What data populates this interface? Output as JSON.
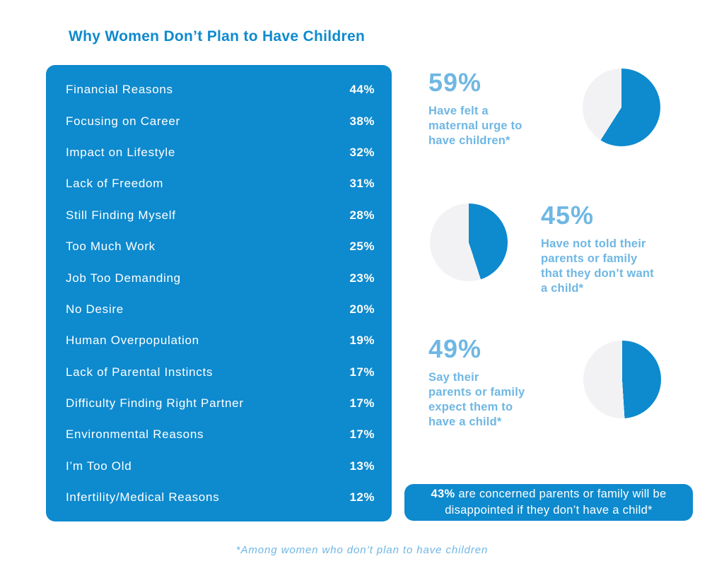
{
  "title": "Why Women Don’t Plan to Have Children",
  "colors": {
    "primary": "#0E8ACE",
    "light_blue": "#6FB7E4",
    "pie_rest": "#F2F2F4",
    "text_on_primary": "#FFFFFF"
  },
  "reasons": {
    "items": [
      {
        "label": "Financial Reasons",
        "pct": "44%"
      },
      {
        "label": "Focusing on Career",
        "pct": "38%"
      },
      {
        "label": "Impact on Lifestyle",
        "pct": "32%"
      },
      {
        "label": "Lack of Freedom",
        "pct": "31%"
      },
      {
        "label": "Still Finding Myself",
        "pct": "28%"
      },
      {
        "label": "Too Much Work",
        "pct": "25%"
      },
      {
        "label": "Job Too Demanding",
        "pct": "23%"
      },
      {
        "label": "No Desire",
        "pct": "20%"
      },
      {
        "label": "Human Overpopulation",
        "pct": "19%"
      },
      {
        "label": "Lack of Parental Instincts",
        "pct": "17%"
      },
      {
        "label": "Difficulty Finding Right Partner",
        "pct": "17%"
      },
      {
        "label": "Environmental Reasons",
        "pct": "17%"
      },
      {
        "label": "I’m Too Old",
        "pct": "13%"
      },
      {
        "label": "Infertility/Medical Reasons",
        "pct": "12%"
      }
    ]
  },
  "stats": [
    {
      "value": 59,
      "number": "59%",
      "lines": [
        "Have felt a",
        "maternal urge to",
        "have children*"
      ]
    },
    {
      "value": 45,
      "number": "45%",
      "lines": [
        "Have not told their",
        "parents or family",
        "that they don’t want",
        "a child*"
      ]
    },
    {
      "value": 49,
      "number": "49%",
      "lines": [
        "Say their",
        "parents or family",
        "expect them to",
        "have a child*"
      ]
    }
  ],
  "banner": {
    "highlight": "43%",
    "text": " are concerned parents or family will be disappointed if they don’t have a child*"
  },
  "footnote": "*Among women who don’t plan to have children",
  "chart_data": [
    {
      "type": "table",
      "title": "Why Women Don’t Plan to Have Children",
      "categories": [
        "Financial Reasons",
        "Focusing on Career",
        "Impact on Lifestyle",
        "Lack of Freedom",
        "Still Finding Myself",
        "Too Much Work",
        "Job Too Demanding",
        "No Desire",
        "Human Overpopulation",
        "Lack of Parental Instincts",
        "Difficulty Finding Right Partner",
        "Environmental Reasons",
        "I’m Too Old",
        "Infertility/Medical Reasons"
      ],
      "values": [
        44,
        38,
        32,
        31,
        28,
        25,
        23,
        20,
        19,
        17,
        17,
        17,
        13,
        12
      ],
      "unit": "%"
    },
    {
      "type": "pie",
      "title": "Have felt a maternal urge to have children*",
      "labels": [
        "59%",
        "remainder"
      ],
      "values": [
        59,
        41
      ],
      "colors": [
        "#0E8ACE",
        "#F2F2F4"
      ],
      "start": "12 o’clock",
      "direction": "clockwise"
    },
    {
      "type": "pie",
      "title": "Have not told their parents or family that they don’t want a child*",
      "labels": [
        "45%",
        "remainder"
      ],
      "values": [
        45,
        55
      ],
      "colors": [
        "#0E8ACE",
        "#F2F2F4"
      ],
      "start": "12 o’clock",
      "direction": "clockwise"
    },
    {
      "type": "pie",
      "title": "Say their parents or family expect them to have a child*",
      "labels": [
        "49%",
        "remainder"
      ],
      "values": [
        49,
        51
      ],
      "colors": [
        "#0E8ACE",
        "#F2F2F4"
      ],
      "start": "12 o’clock",
      "direction": "clockwise"
    },
    {
      "type": "annotation",
      "value": 43,
      "unit": "%",
      "text": "43% are concerned parents or family will be disappointed if they don’t have a child*"
    }
  ]
}
